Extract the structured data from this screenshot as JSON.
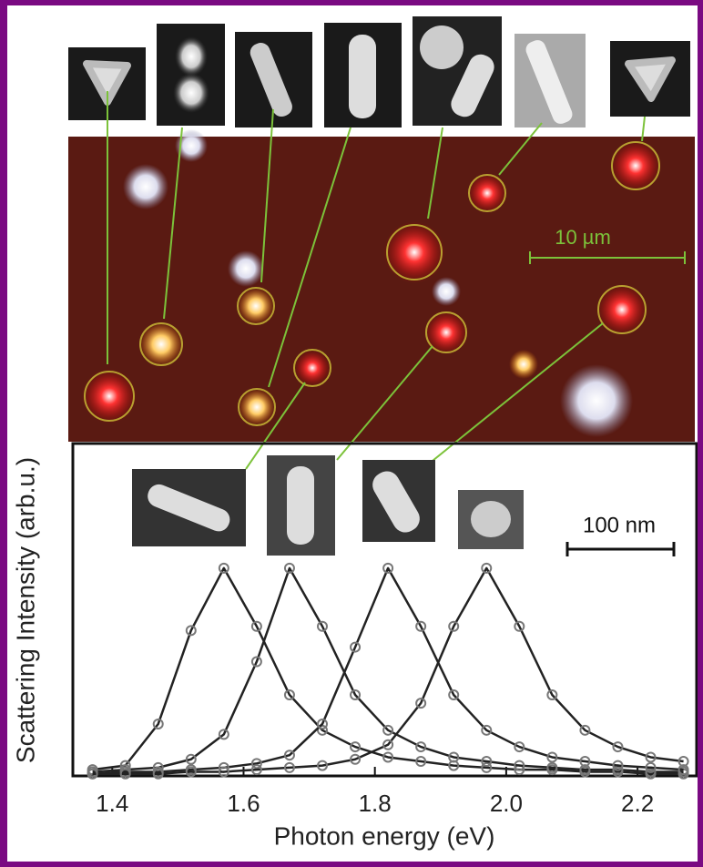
{
  "chart_data": {
    "type": "line",
    "x_label": "Photon energy (eV)",
    "y_label": "Scattering Intensity (arb.u.)",
    "annotations": [
      "10 µm",
      "100 nm"
    ],
    "x": [
      1.37,
      1.42,
      1.47,
      1.52,
      1.57,
      1.62,
      1.67,
      1.72,
      1.77,
      1.82,
      1.87,
      1.92,
      1.97,
      2.02,
      2.07,
      2.12,
      2.17,
      2.22,
      2.27
    ],
    "series": [
      {
        "color": "#222222",
        "values": [
          0.03,
          0.05,
          0.25,
          0.7,
          1,
          0.72,
          0.39,
          0.22,
          0.14,
          0.09,
          0.07,
          0.05,
          0.04,
          0.03,
          0.03,
          0.02,
          0.02,
          0.01,
          0.01
        ]
      },
      {
        "color": "#222222",
        "values": [
          0.02,
          0.03,
          0.04,
          0.08,
          0.2,
          0.55,
          1,
          0.72,
          0.39,
          0.22,
          0.14,
          0.09,
          0.07,
          0.05,
          0.04,
          0.03,
          0.03,
          0.02,
          0.02
        ]
      },
      {
        "color": "#222222",
        "values": [
          0.01,
          0.02,
          0.02,
          0.03,
          0.04,
          0.06,
          0.1,
          0.25,
          0.62,
          1,
          0.72,
          0.39,
          0.22,
          0.14,
          0.09,
          0.07,
          0.05,
          0.04,
          0.03
        ]
      },
      {
        "color": "#222222",
        "values": [
          0.01,
          0.01,
          0.01,
          0.02,
          0.02,
          0.03,
          0.04,
          0.05,
          0.08,
          0.15,
          0.35,
          0.72,
          1,
          0.72,
          0.39,
          0.22,
          0.14,
          0.09,
          0.07
        ]
      }
    ],
    "xlim": [
      1.34,
      2.29
    ],
    "xticks": [
      1.4,
      1.6,
      1.8,
      {
        "value": 2,
        "label": "2.0"
      },
      2.2
    ],
    "ylim": [
      0,
      1.6
    ],
    "grid": false,
    "markers": true
  }
}
